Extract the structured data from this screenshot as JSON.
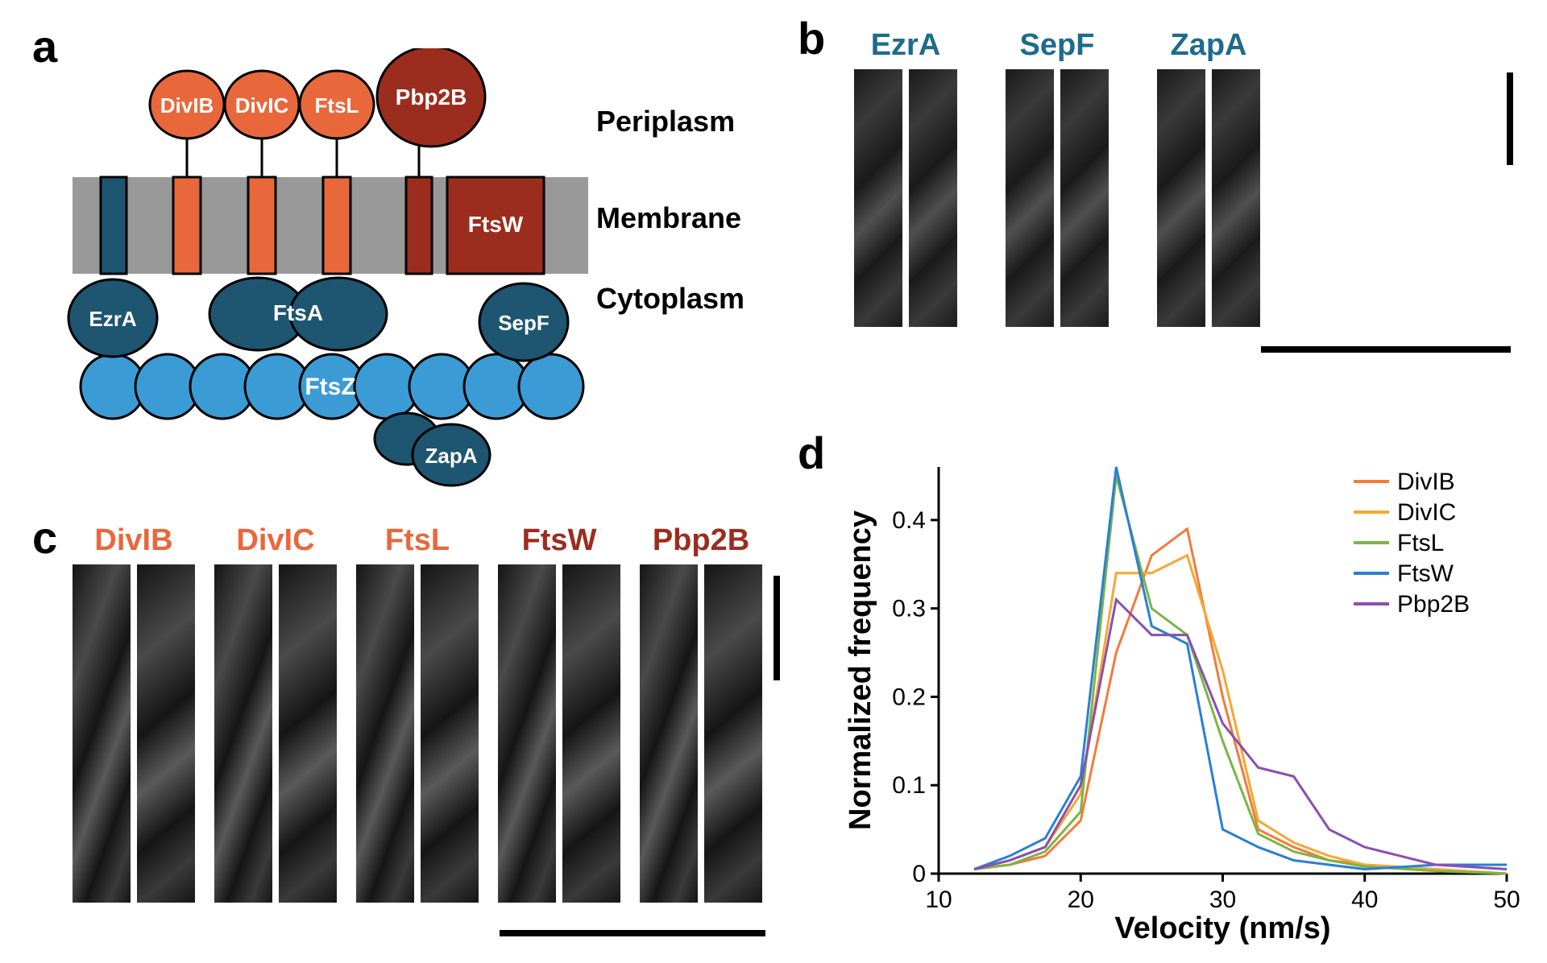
{
  "panel_labels": {
    "a": "a",
    "b": "b",
    "c": "c",
    "d": "d"
  },
  "diagram": {
    "compartments": {
      "periplasm": "Periplasm",
      "membrane": "Membrane",
      "cytoplasm": "Cytoplasm"
    },
    "proteins": {
      "DivIB": "DivIB",
      "DivIC": "DivIC",
      "FtsL": "FtsL",
      "Pbp2B": "Pbp2B",
      "FtsW": "FtsW",
      "EzrA": "EzrA",
      "FtsA": "FtsA",
      "SepF": "SepF",
      "FtsZ": "FtsZ",
      "ZapA": "ZapA"
    },
    "colors": {
      "light_orange": "#e8683c",
      "dark_red": "#9b2d1f",
      "dark_blue": "#1e5570",
      "light_blue": "#3b9bd4",
      "membrane_gray": "#999999",
      "text_white": "#ffffff",
      "text_black": "#000000",
      "stroke": "#000000"
    }
  },
  "panel_b": {
    "labels": [
      "EzrA",
      "SepF",
      "ZapA"
    ],
    "label_color": "#1e6b8c",
    "kymo_width": 60,
    "kymo_height": 320
  },
  "panel_c": {
    "labels": [
      "DivIB",
      "DivIC",
      "FtsL",
      "FtsW",
      "Pbp2B"
    ],
    "label_colors": [
      "#e8683c",
      "#e8683c",
      "#e8683c",
      "#9b2d1f",
      "#9b2d1f"
    ],
    "kymo_width": 72,
    "kymo_height": 420
  },
  "chart": {
    "type": "line",
    "xlabel": "Velocity (nm/s)",
    "ylabel": "Normalized frequency",
    "xlim": [
      10,
      50
    ],
    "ylim": [
      0,
      0.46
    ],
    "xticks": [
      10,
      20,
      30,
      40,
      50
    ],
    "yticks": [
      0,
      0.1,
      0.2,
      0.3,
      0.4
    ],
    "label_fontsize": 38,
    "tick_fontsize": 30,
    "line_width": 3,
    "background_color": "#ffffff",
    "series": [
      {
        "name": "DivIB",
        "color": "#f47a3c",
        "x": [
          12.5,
          15,
          17.5,
          20,
          22.5,
          25,
          27.5,
          30,
          32.5,
          35,
          37.5,
          40,
          45,
          50
        ],
        "y": [
          0.005,
          0.01,
          0.02,
          0.06,
          0.25,
          0.36,
          0.39,
          0.2,
          0.05,
          0.03,
          0.015,
          0.01,
          0.005,
          0
        ]
      },
      {
        "name": "DivIC",
        "color": "#f4a832",
        "x": [
          12.5,
          15,
          17.5,
          20,
          22.5,
          25,
          27.5,
          30,
          32.5,
          35,
          37.5,
          40,
          45,
          50
        ],
        "y": [
          0.005,
          0.015,
          0.03,
          0.09,
          0.34,
          0.34,
          0.36,
          0.23,
          0.06,
          0.035,
          0.02,
          0.01,
          0.005,
          0
        ]
      },
      {
        "name": "FtsL",
        "color": "#7bb544",
        "x": [
          12.5,
          15,
          17.5,
          20,
          22.5,
          25,
          27.5,
          30,
          32.5,
          35,
          37.5,
          40,
          45,
          50
        ],
        "y": [
          0.005,
          0.01,
          0.025,
          0.07,
          0.45,
          0.3,
          0.27,
          0.15,
          0.045,
          0.025,
          0.015,
          0.008,
          0.003,
          0
        ]
      },
      {
        "name": "FtsW",
        "color": "#2a7fd4",
        "x": [
          12.5,
          15,
          17.5,
          20,
          22.5,
          25,
          27.5,
          30,
          32.5,
          35,
          37.5,
          40,
          45,
          50
        ],
        "y": [
          0.005,
          0.02,
          0.04,
          0.11,
          0.46,
          0.28,
          0.26,
          0.05,
          0.03,
          0.015,
          0.01,
          0.005,
          0.01,
          0.01
        ]
      },
      {
        "name": "Pbp2B",
        "color": "#8a4fb0",
        "x": [
          12.5,
          15,
          17.5,
          20,
          22.5,
          25,
          27.5,
          30,
          32.5,
          35,
          37.5,
          40,
          45,
          50
        ],
        "y": [
          0.005,
          0.015,
          0.03,
          0.1,
          0.31,
          0.27,
          0.27,
          0.17,
          0.12,
          0.11,
          0.05,
          0.03,
          0.01,
          0.005
        ]
      }
    ]
  }
}
